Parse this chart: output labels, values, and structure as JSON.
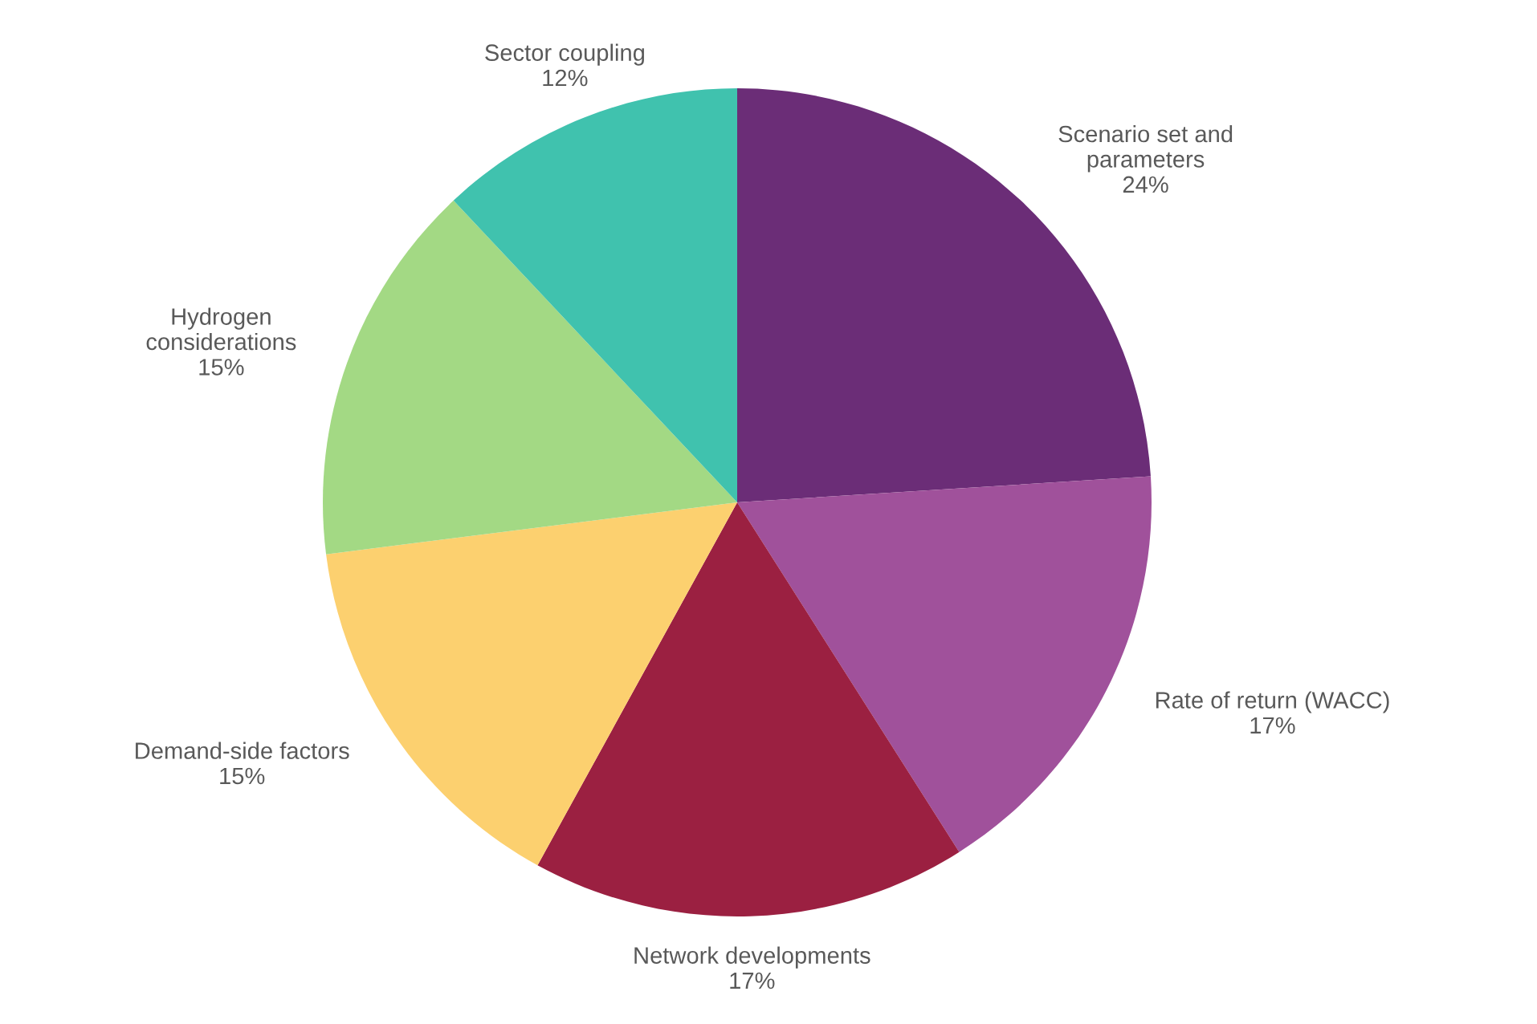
{
  "chart_data": {
    "type": "pie",
    "categories": [
      "Scenario set and\nparameters",
      "Rate of return (WACC)",
      "Network developments",
      "Demand-side factors",
      "Hydrogen\nconsiderations",
      "Sector coupling"
    ],
    "values": [
      24,
      17,
      17,
      15,
      15,
      12
    ],
    "value_labels": [
      "24%",
      "17%",
      "17%",
      "15%",
      "15%",
      "12%"
    ],
    "colors": [
      "#6b2d77",
      "#a0519b",
      "#9b2041",
      "#fcd06f",
      "#a3d984",
      "#40c2ae"
    ]
  }
}
